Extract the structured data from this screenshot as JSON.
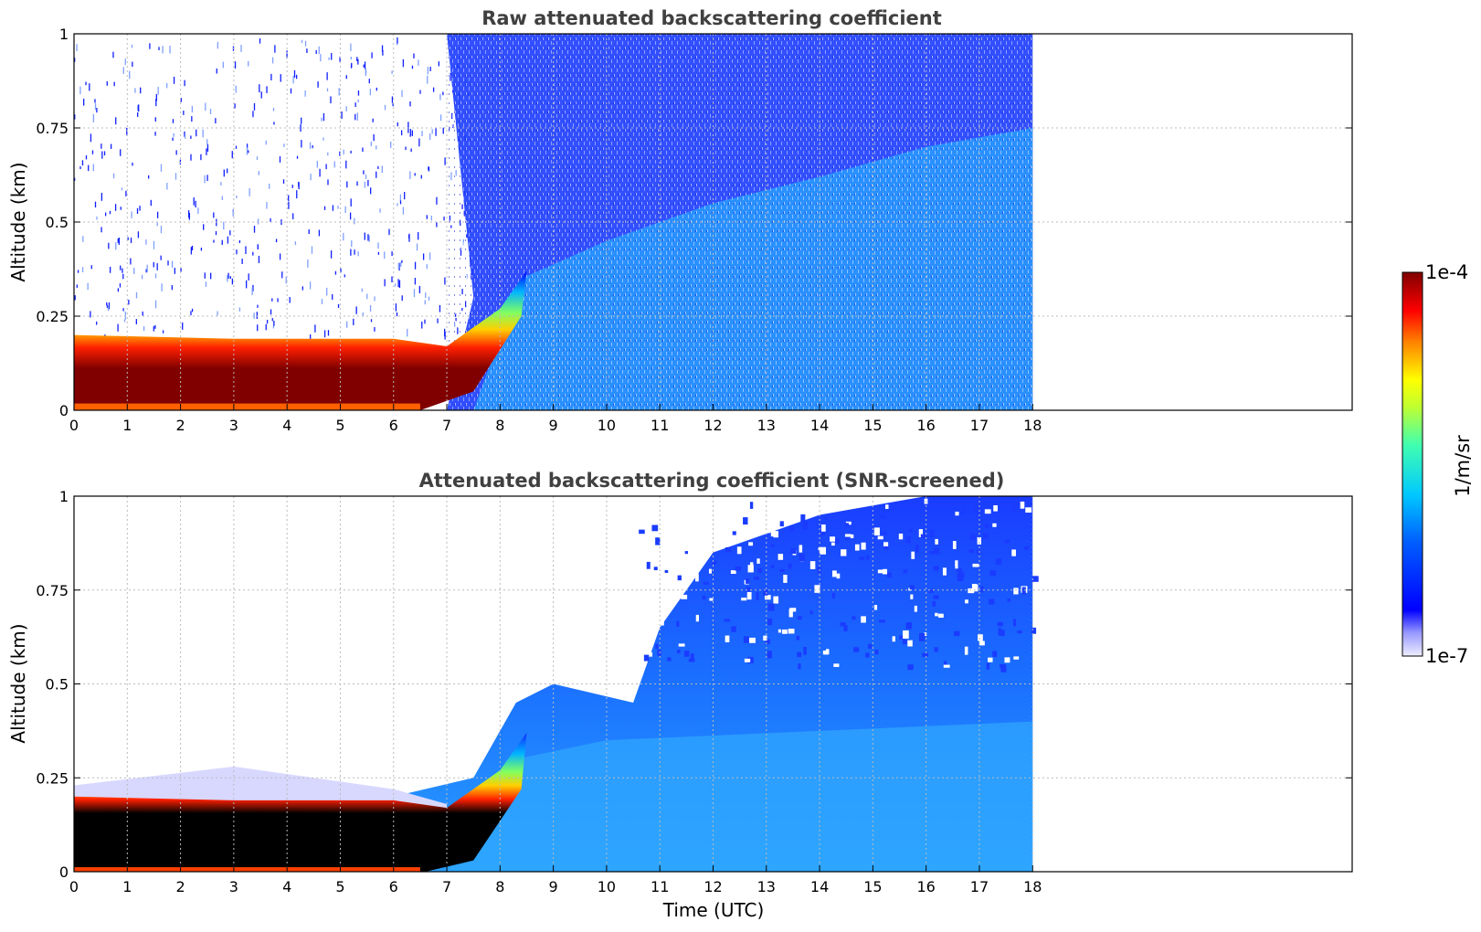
{
  "chart_data": [
    {
      "type": "heatmap",
      "title": "Raw attenuated backscattering coefficient",
      "xlabel": "",
      "ylabel": "Altitude (km)",
      "xlim": [
        0,
        24
      ],
      "ylim": [
        0,
        1
      ],
      "xticks": [
        "0",
        "1",
        "2",
        "3",
        "4",
        "5",
        "6",
        "7",
        "8",
        "9",
        "10",
        "11",
        "12",
        "13",
        "14",
        "15",
        "16",
        "17",
        "18"
      ],
      "yticks": [
        "0",
        "0.25",
        "0.5",
        "0.75",
        "1"
      ],
      "grid": true,
      "data_extent_hours": [
        0,
        18
      ],
      "boundary_layer_top_km": [
        {
          "x": 0,
          "y": 0.17
        },
        {
          "x": 3,
          "y": 0.16
        },
        {
          "x": 6,
          "y": 0.16
        },
        {
          "x": 7,
          "y": 0.12
        },
        {
          "x": 8,
          "y": 0.22
        },
        {
          "x": 8.5,
          "y": 0.35
        }
      ],
      "screened": false
    },
    {
      "type": "heatmap",
      "title": "Attenuated backscattering coefficient (SNR-screened)",
      "xlabel": "Time (UTC)",
      "ylabel": "Altitude (km)",
      "xlim": [
        0,
        24
      ],
      "ylim": [
        0,
        1
      ],
      "xticks": [
        "0",
        "1",
        "2",
        "3",
        "4",
        "5",
        "6",
        "7",
        "8",
        "9",
        "10",
        "11",
        "12",
        "13",
        "14",
        "15",
        "16",
        "17",
        "18"
      ],
      "yticks": [
        "0",
        "0.25",
        "0.5",
        "0.75",
        "1"
      ],
      "grid": true,
      "data_extent_hours": [
        0,
        18
      ],
      "signal_top_km": [
        {
          "x": 0,
          "y": 0.2
        },
        {
          "x": 6,
          "y": 0.2
        },
        {
          "x": 7.5,
          "y": 0.25
        },
        {
          "x": 8.3,
          "y": 0.45
        },
        {
          "x": 9,
          "y": 0.5
        },
        {
          "x": 10.5,
          "y": 0.45
        },
        {
          "x": 11,
          "y": 0.65
        },
        {
          "x": 12,
          "y": 0.85
        },
        {
          "x": 13,
          "y": 0.9
        },
        {
          "x": 14,
          "y": 0.95
        },
        {
          "x": 16,
          "y": 1.0
        },
        {
          "x": 18,
          "y": 1.0
        }
      ],
      "screened": true
    }
  ],
  "colorbar": {
    "max_label": "1e-4",
    "min_label": "1e-7",
    "unit_label": "1/m/sr",
    "scale": "log",
    "range": [
      1e-07,
      0.0001
    ],
    "colormap": [
      "#e8e8ff",
      "#0000ff",
      "#00c8ff",
      "#50ff50",
      "#ffff00",
      "#ff8000",
      "#ff0000",
      "#800000"
    ]
  }
}
